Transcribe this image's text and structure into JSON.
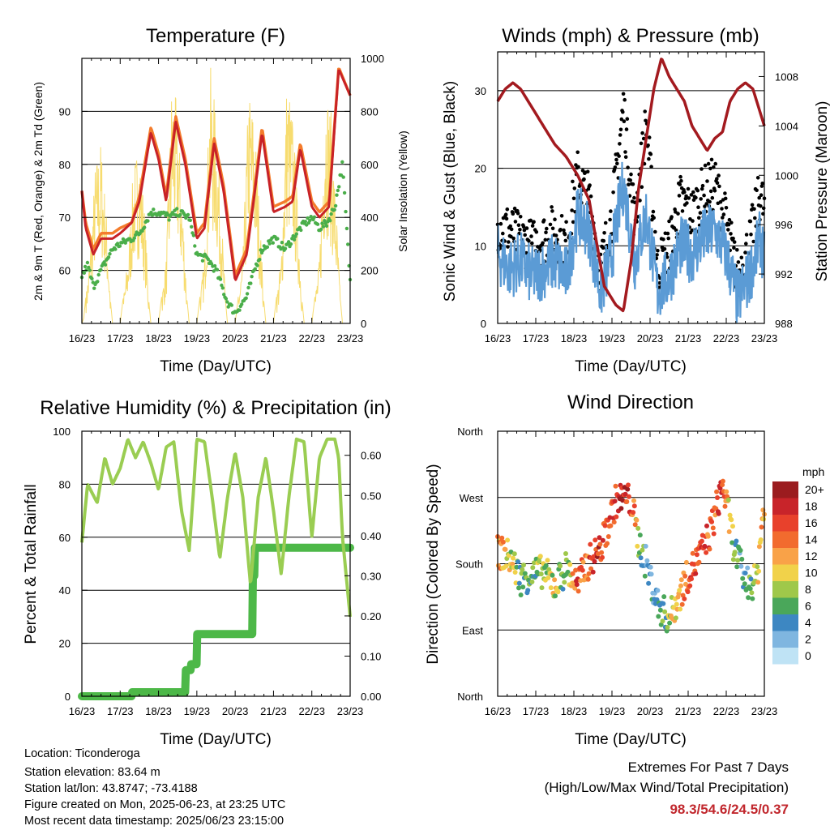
{
  "colors": {
    "temp2m": "#c82227",
    "temp9m": "#f47c2c",
    "dew": "#4aae4a",
    "solar": "#f7dc6f",
    "wind": "#000000",
    "gust_sonic": "#5b9bd5",
    "pressure": "#a31a1f",
    "rh": "#9acd52",
    "precip": "#4db848",
    "extremes": "#c1272d"
  },
  "x_ticks": [
    "16/23",
    "17/23",
    "18/23",
    "19/23",
    "20/23",
    "21/23",
    "22/23",
    "23/23"
  ],
  "panels": {
    "temperature": {
      "title": "Temperature (F)",
      "xlabel": "Time (Day/UTC)",
      "ylabel_left": "2m & 9m T (Red, Orange) & 2m Td (Green)",
      "ylabel_right": "Solar Insolation (Yellow)",
      "left_ticks": [
        "60",
        "70",
        "80",
        "90"
      ],
      "right_ticks": [
        "0",
        "200",
        "400",
        "600",
        "800",
        "1000"
      ]
    },
    "winds": {
      "title": "Winds (mph) & Pressure (mb)",
      "xlabel": "Time (Day/UTC)",
      "ylabel_left": "Sonic Wind & Gust (Blue, Black)",
      "ylabel_right": "Station Pressure (Maroon)",
      "left_ticks": [
        "0",
        "10",
        "20",
        "30"
      ],
      "right_ticks": [
        "988",
        "992",
        "996",
        "1000",
        "1004",
        "1008"
      ]
    },
    "humidity": {
      "title": "Relative Humidity (%) & Precipitation (in)",
      "xlabel": "Time (Day/UTC)",
      "ylabel_left": "Percent & Total Rainfall",
      "left_ticks": [
        "0",
        "20",
        "40",
        "60",
        "80",
        "100"
      ],
      "right_ticks": [
        "0.00",
        "0.10",
        "0.20",
        "0.30",
        "0.40",
        "0.50",
        "0.60"
      ]
    },
    "direction": {
      "title": "Wind Direction",
      "xlabel": "Time (Day/UTC)",
      "ylabel_left": "Direction (Colored By Speed)",
      "left_ticks": [
        "North",
        "East",
        "South",
        "West",
        "North"
      ],
      "legend_title": "mph",
      "legend_labels": [
        "20+",
        "18",
        "16",
        "14",
        "12",
        "10",
        "8",
        "6",
        "4",
        "2",
        "0"
      ],
      "legend_colors": [
        "#9b1c1f",
        "#c8242a",
        "#e8412c",
        "#f26b2e",
        "#f9a248",
        "#f1d24a",
        "#9fc84a",
        "#4aa75a",
        "#3d87c2",
        "#7fb6e0",
        "#bfe3f5"
      ]
    }
  },
  "info": {
    "location": "Location: Ticonderoga",
    "elevation": "Station elevation: 83.64 m",
    "latlon": "Station lat/lon: 43.8747; -73.4188",
    "created": "Figure created on Mon, 2025-06-23, at 23:25 UTC",
    "timestamp": "Most recent data timestamp: 2025/06/23 23:15:00"
  },
  "extremes": {
    "title": "Extremes For Past 7 Days",
    "subtitle": "(High/Low/Max Wind/Total Precipitation)",
    "values": "98.3/54.6/24.5/0.37"
  },
  "chart_data": [
    {
      "type": "line",
      "x_unit": "day",
      "series": [
        {
          "key": "temp2m",
          "x": [
            0,
            0.1,
            0.3,
            0.5,
            0.8,
            1.0,
            1.3,
            1.5,
            1.8,
            2.0,
            2.2,
            2.45,
            2.7,
            3.0,
            3.2,
            3.45,
            3.7,
            4.0,
            4.3,
            4.5,
            4.7,
            5.0,
            5.3,
            5.5,
            5.7,
            6.0,
            6.2,
            6.45,
            6.7,
            7.0
          ],
          "y": [
            75,
            68,
            63,
            66,
            66,
            67,
            69,
            73,
            86,
            81,
            73,
            88,
            80,
            66,
            68,
            84,
            75,
            58,
            63,
            74,
            86,
            71,
            72,
            73,
            83,
            72,
            70,
            72,
            98,
            93
          ]
        },
        {
          "key": "temp9m",
          "x": [
            0,
            0.1,
            0.3,
            0.5,
            0.8,
            1.0,
            1.3,
            1.5,
            1.8,
            2.0,
            2.2,
            2.45,
            2.7,
            3.0,
            3.2,
            3.45,
            3.7,
            4.0,
            4.3,
            4.5,
            4.7,
            5.0,
            5.3,
            5.5,
            5.7,
            6.0,
            6.2,
            6.45,
            6.7,
            7.0
          ],
          "y": [
            75,
            69,
            64,
            67,
            67,
            68,
            69,
            74,
            87,
            82,
            74,
            89,
            81,
            67,
            69,
            85,
            76,
            59,
            64,
            75,
            87,
            72,
            73,
            74,
            84,
            73,
            71,
            73,
            98.3,
            93
          ]
        },
        {
          "key": "dew",
          "x": [
            0,
            0.15,
            0.3,
            0.5,
            0.8,
            1.0,
            1.3,
            1.5,
            1.8,
            2.0,
            2.3,
            2.5,
            2.8,
            3.0,
            3.3,
            3.5,
            3.8,
            4.0,
            4.3,
            4.5,
            4.7,
            5.0,
            5.3,
            5.5,
            5.7,
            6.0,
            6.2,
            6.4,
            6.6,
            6.8,
            7.0
          ],
          "y": [
            59,
            61,
            57,
            60,
            64,
            65,
            66,
            67,
            71,
            71,
            70,
            71,
            70,
            63,
            62,
            60,
            54,
            52,
            55,
            60,
            64,
            66,
            64,
            66,
            68,
            70,
            68,
            69,
            72,
            80,
            58
          ]
        },
        {
          "key": "solar",
          "x": [
            0,
            0.05,
            0.2,
            0.35,
            0.5,
            0.65,
            0.75,
            0.8,
            1.0,
            1.2,
            1.35,
            1.5,
            1.65,
            1.75,
            1.8,
            2.0,
            2.2,
            2.35,
            2.5,
            2.65,
            2.75,
            2.8,
            3.0,
            3.2,
            3.35,
            3.5,
            3.65,
            3.75,
            3.8,
            4.0,
            4.2,
            4.35,
            4.5,
            4.65,
            4.75,
            4.8,
            5.0,
            5.2,
            5.35,
            5.5,
            5.65,
            5.75,
            5.8,
            6.0,
            6.2,
            6.35,
            6.5,
            6.65,
            6.75,
            6.8,
            7.0
          ],
          "y": [
            0,
            20,
            250,
            600,
            700,
            400,
            80,
            0,
            0,
            250,
            600,
            700,
            400,
            80,
            0,
            0,
            250,
            950,
            800,
            400,
            80,
            0,
            0,
            250,
            980,
            800,
            400,
            80,
            0,
            0,
            250,
            900,
            800,
            400,
            80,
            0,
            0,
            250,
            950,
            800,
            400,
            80,
            0,
            0,
            250,
            950,
            800,
            400,
            80,
            0,
            0
          ]
        }
      ],
      "xlim": [
        0,
        7
      ],
      "ylim_left": [
        50,
        100
      ],
      "ylim_right": [
        0,
        1000
      ]
    },
    {
      "type": "line",
      "x_unit": "day",
      "series": [
        {
          "key": "pressure",
          "x": [
            0,
            0.2,
            0.4,
            0.6,
            0.9,
            1.2,
            1.5,
            1.8,
            2.1,
            2.4,
            2.6,
            2.8,
            3.0,
            3.1,
            3.3,
            3.5,
            3.7,
            3.9,
            4.1,
            4.3,
            4.5,
            4.7,
            4.9,
            5.1,
            5.3,
            5.5,
            5.7,
            5.9,
            6.1,
            6.3,
            6.5,
            6.7,
            6.9,
            7.0
          ],
          "y": [
            1006,
            1007,
            1007.5,
            1007,
            1005.5,
            1004,
            1002.5,
            1001.5,
            1000,
            998,
            994.5,
            991,
            990,
            989.5,
            989,
            993,
            999,
            1003,
            1007,
            1009.5,
            1008,
            1007,
            1006,
            1004,
            1003,
            1002,
            1003,
            1003.5,
            1006,
            1007,
            1007.5,
            1007,
            1005,
            1004
          ]
        },
        {
          "key": "gust_sonic",
          "x": [
            0,
            0.3,
            0.6,
            0.9,
            1.2,
            1.5,
            1.8,
            2.1,
            2.4,
            2.7,
            3.0,
            3.3,
            3.6,
            3.9,
            4.2,
            4.5,
            4.8,
            5.1,
            5.4,
            5.7,
            6.0,
            6.3,
            6.6,
            6.9,
            7.0
          ],
          "y": [
            9,
            7,
            8,
            6,
            7,
            8,
            6,
            14,
            12,
            4,
            9,
            18,
            8,
            14,
            4,
            6,
            10,
            9,
            11,
            12,
            9,
            3,
            6,
            11,
            8
          ]
        },
        {
          "key": "wind",
          "x": [
            0,
            0.3,
            0.6,
            0.9,
            1.2,
            1.5,
            1.8,
            2.1,
            2.4,
            2.7,
            3.0,
            3.3,
            3.6,
            3.9,
            4.2,
            4.5,
            4.8,
            5.1,
            5.4,
            5.7,
            6.0,
            6.3,
            6.6,
            6.9,
            7.0
          ],
          "y": [
            13,
            12,
            11,
            10,
            11,
            12,
            10,
            19,
            16,
            7,
            14,
            28,
            13,
            26,
            7,
            10,
            16,
            14,
            17,
            18,
            13,
            6,
            10,
            17,
            14
          ]
        }
      ],
      "xlim": [
        0,
        7
      ],
      "ylim_left": [
        0,
        35
      ],
      "ylim_right": [
        988,
        1010
      ]
    },
    {
      "type": "line",
      "x_unit": "day",
      "series": [
        {
          "key": "rh",
          "x": [
            0,
            0.15,
            0.4,
            0.6,
            0.8,
            1.0,
            1.2,
            1.4,
            1.6,
            1.8,
            2.0,
            2.2,
            2.4,
            2.6,
            2.8,
            2.9,
            3.0,
            3.2,
            3.4,
            3.6,
            3.8,
            4.0,
            4.2,
            4.4,
            4.6,
            4.8,
            5.0,
            5.2,
            5.4,
            5.6,
            5.8,
            6.0,
            6.2,
            6.4,
            6.6,
            6.7,
            6.8,
            7.0
          ],
          "y": [
            58,
            80,
            73,
            90,
            80,
            86,
            97,
            90,
            96,
            88,
            78,
            94,
            96,
            70,
            55,
            75,
            97,
            96,
            75,
            52,
            75,
            92,
            75,
            42,
            75,
            90,
            70,
            46,
            75,
            97,
            96,
            60,
            90,
            97,
            97,
            90,
            60,
            30
          ]
        },
        {
          "key": "precip",
          "x": [
            0,
            1.25,
            1.3,
            2.65,
            2.7,
            2.8,
            2.85,
            2.95,
            3.0,
            4.4,
            4.45,
            4.5,
            7.0
          ],
          "y": [
            0.0,
            0.0,
            0.01,
            0.01,
            0.065,
            0.065,
            0.08,
            0.08,
            0.155,
            0.155,
            0.3,
            0.37,
            0.37
          ]
        }
      ],
      "xlim": [
        0,
        7
      ],
      "ylim_left": [
        0,
        100
      ],
      "ylim_right": [
        0,
        0.66
      ]
    },
    {
      "type": "scatter",
      "x_unit": "day",
      "y_unit": "degrees",
      "x": [
        0.1,
        0.3,
        0.6,
        0.9,
        1.2,
        1.5,
        1.8,
        2.1,
        2.3,
        2.5,
        2.7,
        3.1,
        3.3,
        3.5,
        3.7,
        3.9,
        4.2,
        4.5,
        4.8,
        5.0,
        5.3,
        5.6,
        5.9,
        6.2,
        6.5,
        6.8,
        6.95
      ],
      "y": [
        195,
        190,
        160,
        165,
        170,
        150,
        175,
        150,
        175,
        190,
        200,
        265,
        270,
        265,
        210,
        180,
        125,
        105,
        140,
        165,
        190,
        225,
        290,
        205,
        155,
        155,
        245
      ],
      "speed": [
        12,
        10,
        6,
        6,
        8,
        9,
        6,
        16,
        14,
        18,
        16,
        16,
        18,
        16,
        8,
        4,
        4,
        8,
        12,
        14,
        16,
        14,
        16,
        6,
        4,
        10,
        12
      ],
      "ylim": [
        0,
        360
      ]
    }
  ]
}
